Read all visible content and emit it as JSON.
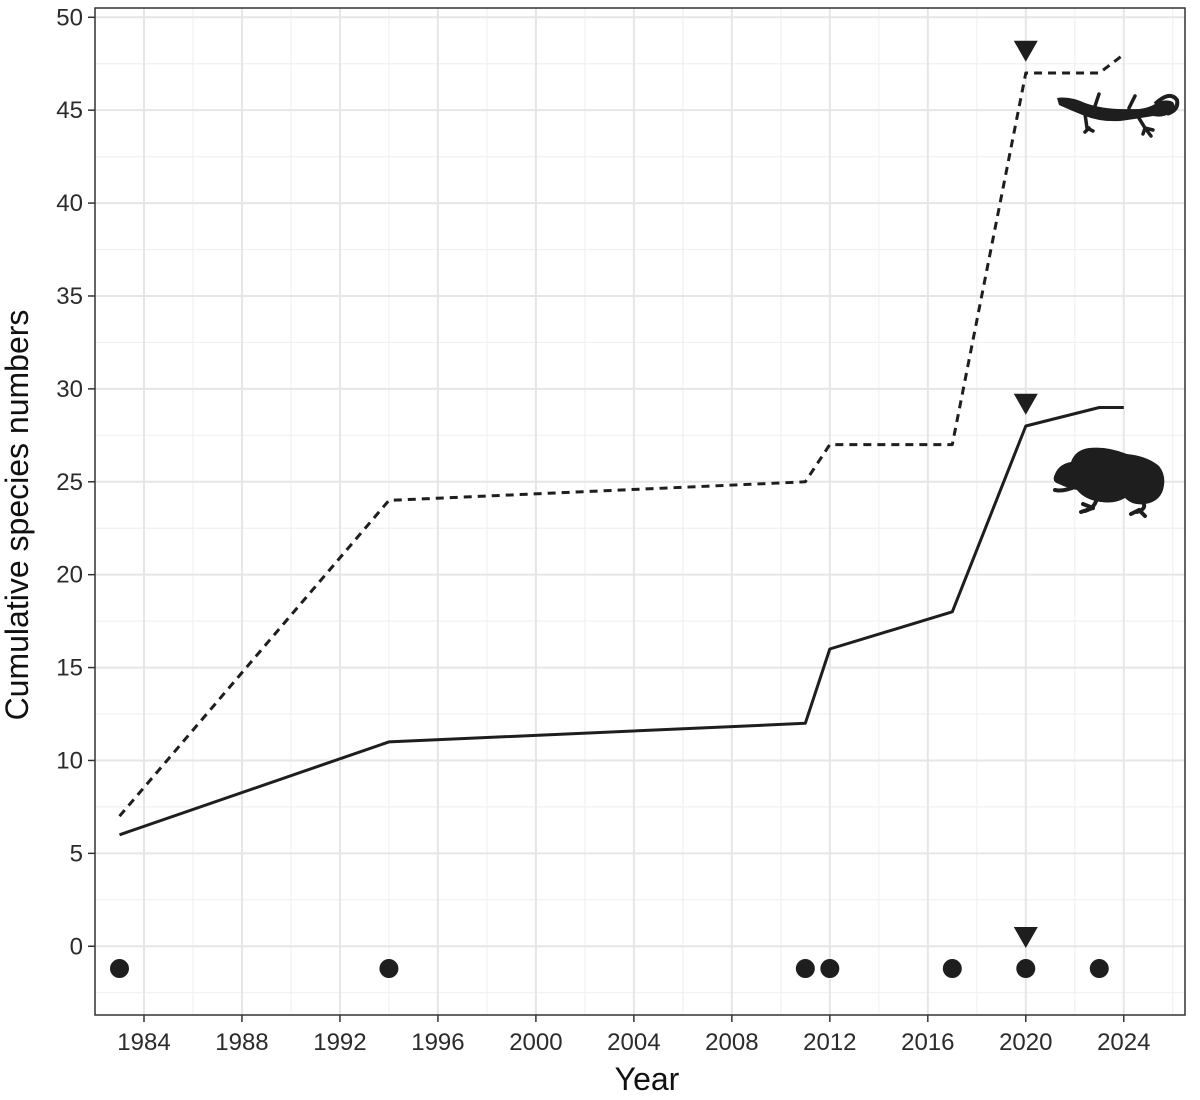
{
  "chart_data": {
    "type": "line",
    "title": "",
    "xlabel": "Year",
    "ylabel": "Cumulative species numbers",
    "xlim": [
      1982,
      2026.5
    ],
    "ylim": [
      -3.7,
      50.5
    ],
    "x_ticks": [
      1984,
      1988,
      1992,
      1996,
      2000,
      2004,
      2008,
      2012,
      2016,
      2020,
      2024
    ],
    "y_ticks": [
      0,
      5,
      10,
      15,
      20,
      25,
      30,
      35,
      40,
      45,
      50
    ],
    "grid": true,
    "series": [
      {
        "style": "dashed",
        "icon": "lizard-silhouette-icon",
        "x": [
          1983,
          1994,
          2011,
          2012,
          2017,
          2020,
          2023,
          2024
        ],
        "y": [
          7,
          24,
          25,
          27,
          27,
          47,
          47,
          48
        ]
      },
      {
        "style": "solid",
        "icon": "frog-silhouette-icon",
        "x": [
          1983,
          1994,
          2011,
          2012,
          2017,
          2020,
          2023,
          2024
        ],
        "y": [
          6,
          11,
          12,
          16,
          18,
          28,
          29,
          29
        ]
      }
    ],
    "event_points": {
      "marker": "circle",
      "x": [
        1983,
        1994,
        2011,
        2012,
        2017,
        2020,
        2023
      ],
      "y": -1.2
    },
    "triangle_markers": [
      {
        "x": 2020,
        "y": 48.2
      },
      {
        "x": 2020,
        "y": 29.2
      },
      {
        "x": 2020,
        "y": 0.5
      }
    ],
    "colors": {
      "ink": "#1e1e1e",
      "grid": "#e6e6e6",
      "grid_minor": "#f1f1f1",
      "border": "#333333"
    }
  }
}
